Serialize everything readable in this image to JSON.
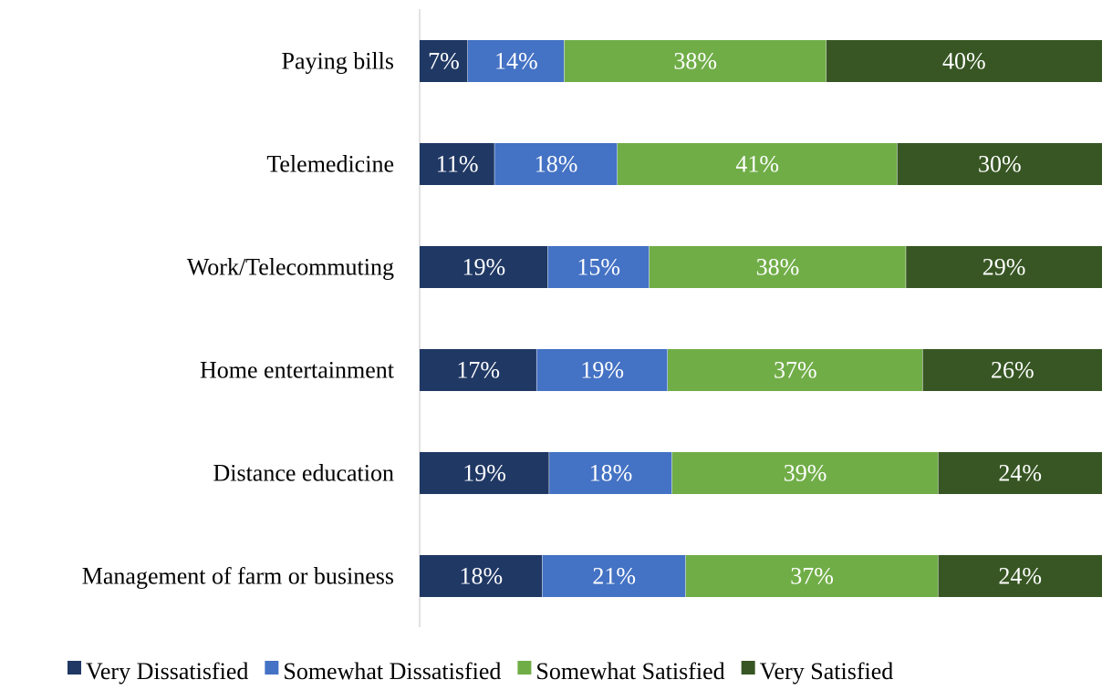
{
  "chart_data": {
    "type": "bar",
    "orientation": "horizontal",
    "stacked": true,
    "percent": true,
    "categories": [
      "Paying bills",
      "Telemedicine",
      "Work/Telecommuting",
      "Home entertainment",
      "Distance education",
      "Management of farm or business"
    ],
    "series": [
      {
        "name": "Very Dissatisfied",
        "color": "#203864",
        "values": [
          7,
          11,
          19,
          17,
          19,
          18
        ],
        "labels": [
          "7%",
          "11%",
          "19%",
          "17%",
          "19%",
          "18%"
        ]
      },
      {
        "name": "Somewhat Dissatisfied",
        "color": "#4472C4",
        "values": [
          14,
          18,
          15,
          19,
          18,
          21
        ],
        "labels": [
          "14%",
          "18%",
          "15%",
          "19%",
          "18%",
          "21%"
        ]
      },
      {
        "name": "Somewhat Satisfied",
        "color": "#70AD47",
        "values": [
          38,
          41,
          38,
          37,
          39,
          37
        ],
        "labels": [
          "38%",
          "41%",
          "38%",
          "37%",
          "39%",
          "37%"
        ]
      },
      {
        "name": "Very Satisfied",
        "color": "#375623",
        "values": [
          40,
          30,
          29,
          26,
          24,
          24
        ],
        "labels": [
          "40%",
          "30%",
          "29%",
          "26%",
          "24%",
          "24%"
        ]
      }
    ],
    "grid": false,
    "legend": "bottom"
  }
}
